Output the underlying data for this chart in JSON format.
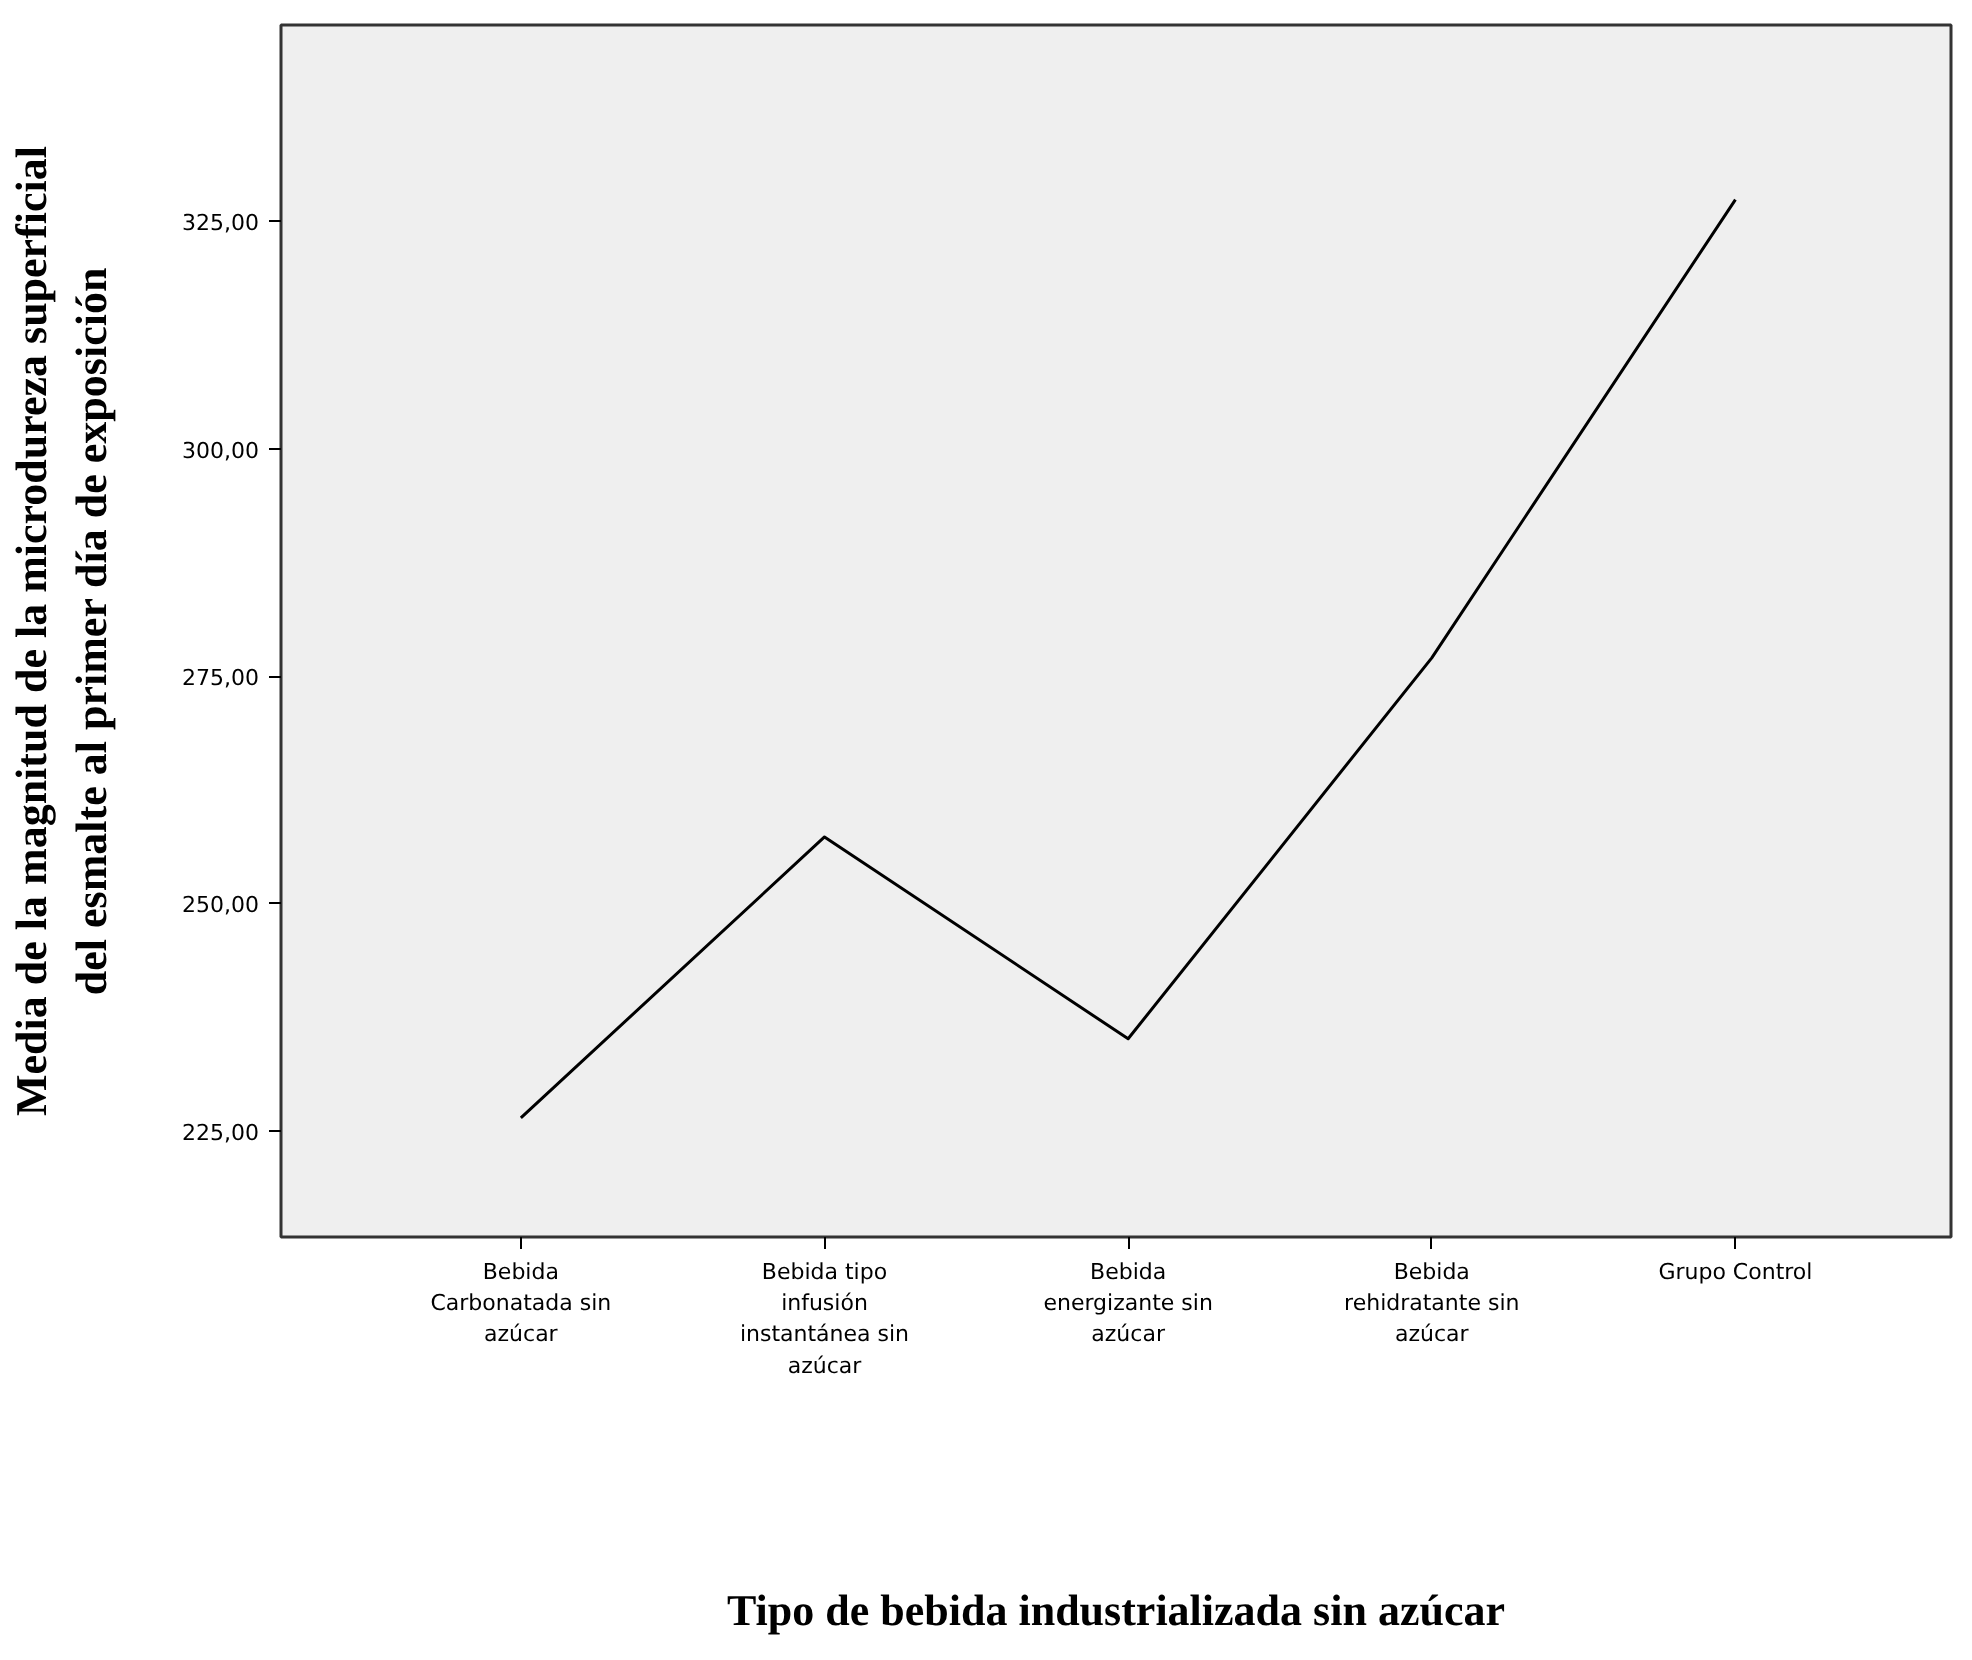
{
  "chart_data": {
    "type": "line",
    "xlabel": "Tipo de bebida industrializada sin azúcar",
    "ylabel": "Media de la magnitud de la microdureza superficial del esmalte al primer día de exposición",
    "categories": [
      "Bebida Carbonatada sin azúcar",
      "Bebida tipo infusión instantánea sin azúcar",
      "Bebida energizante sin azúcar",
      "Bebida rehidratante sin azúcar",
      "Grupo Control"
    ],
    "series": [
      {
        "color": "#000000",
        "values": [
          226.4,
          257.3,
          235.1,
          277.0,
          327.4
        ]
      }
    ],
    "ylim": [
      213.3,
      346.6
    ],
    "yticks": [
      {
        "value": 225,
        "label": "225,00"
      },
      {
        "value": 250,
        "label": "250,00"
      },
      {
        "value": 275,
        "label": "275,00"
      },
      {
        "value": 300,
        "label": "300,00"
      },
      {
        "value": 325,
        "label": "325,00"
      }
    ],
    "grid": false,
    "marker": "none",
    "line_style": "solid"
  }
}
